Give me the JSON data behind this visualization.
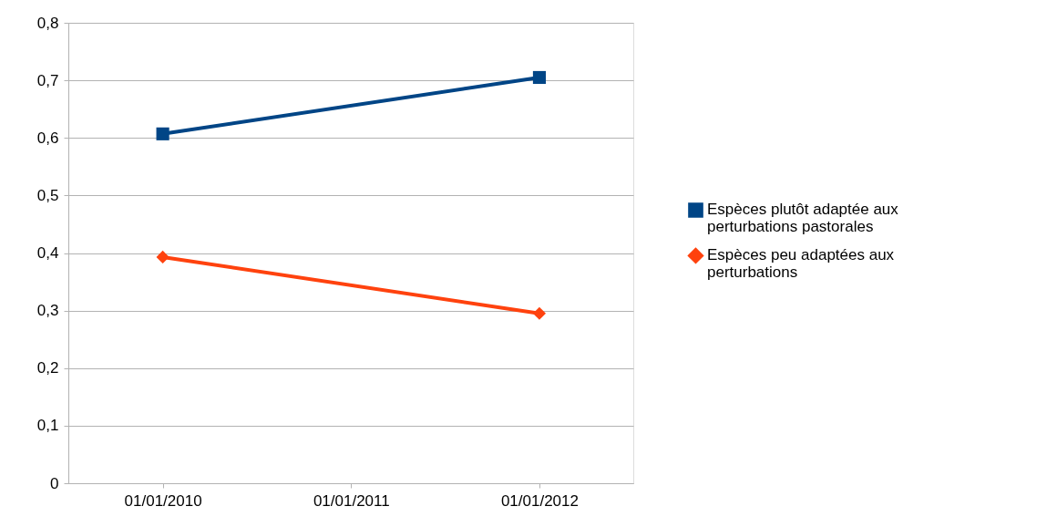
{
  "chart_data": {
    "type": "line",
    "x": [
      "2010-01-01",
      "2012-01-01"
    ],
    "xlim": [
      "2009-07-02",
      "2012-07-01"
    ],
    "xticks": [
      {
        "value": "2010-01-01",
        "label": "01/01/2010"
      },
      {
        "value": "2011-01-01",
        "label": "01/01/2011"
      },
      {
        "value": "2012-01-01",
        "label": "01/01/2012"
      }
    ],
    "ylim": [
      0,
      0.8
    ],
    "yticks": [
      {
        "value": 0,
        "label": "0"
      },
      {
        "value": 0.1,
        "label": "0,1"
      },
      {
        "value": 0.2,
        "label": "0,2"
      },
      {
        "value": 0.3,
        "label": "0,3"
      },
      {
        "value": 0.4,
        "label": "0,4"
      },
      {
        "value": 0.5,
        "label": "0,5"
      },
      {
        "value": 0.6,
        "label": "0,6"
      },
      {
        "value": 0.7,
        "label": "0,7"
      },
      {
        "value": 0.8,
        "label": "0,8"
      }
    ],
    "series": [
      {
        "name": "Espèces plutôt adaptée aux perturbations pastorales",
        "color": "#004586",
        "marker": "square",
        "values": [
          0.607,
          0.705
        ]
      },
      {
        "name": "Espèces peu adaptées aux perturbations",
        "color": "#ff420e",
        "marker": "diamond",
        "values": [
          0.393,
          0.295
        ]
      }
    ],
    "grid": "y",
    "legend": "right",
    "line_style": "solid"
  }
}
